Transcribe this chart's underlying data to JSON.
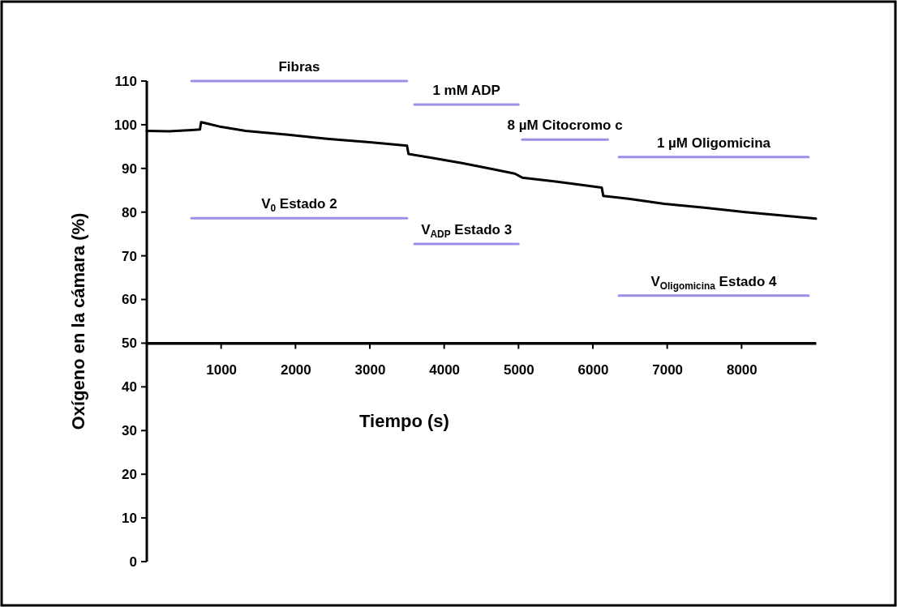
{
  "chart_data": {
    "type": "line",
    "xlabel": "Tiempo (s)",
    "ylabel": "Oxígeno en la cámara (%)",
    "xlim": [
      0,
      9000
    ],
    "xticks": [
      1000,
      2000,
      3000,
      4000,
      5000,
      6000,
      7000,
      8000
    ],
    "ylim": [
      0,
      110
    ],
    "yticks": [
      0,
      10,
      20,
      30,
      40,
      50,
      60,
      70,
      80,
      90,
      100,
      110
    ],
    "grid": false,
    "legend": false,
    "ref_lines": [
      {
        "axis": "y",
        "value": 50,
        "color": "#000000"
      }
    ],
    "series": [
      {
        "color": "#000000",
        "x": [
          0,
          300,
          600,
          715,
          730,
          1000,
          1330,
          1900,
          2420,
          3000,
          3500,
          3520,
          3800,
          4240,
          4600,
          4950,
          5050,
          5500,
          6120,
          6140,
          6500,
          6960,
          7500,
          8050,
          8500,
          9000
        ],
        "values": [
          98.6,
          98.5,
          98.8,
          98.9,
          100.6,
          99.5,
          98.6,
          97.7,
          96.8,
          96.0,
          95.2,
          93.3,
          92.5,
          91.2,
          90.0,
          88.8,
          87.9,
          87.0,
          85.6,
          83.7,
          83.0,
          81.9,
          81.0,
          80.0,
          79.3,
          78.5
        ]
      },
      {
        "name": "Fibras",
        "color": "#9b8fe6",
        "x": [
          600,
          3500
        ],
        "values": [
          110,
          110
        ]
      },
      {
        "name": "1 mM ADP",
        "color": "#9b8fe6",
        "x": [
          3600,
          5000
        ],
        "values": [
          104.6,
          104.6
        ]
      },
      {
        "name": "8 µM Citocromo c",
        "color": "#9b8fe6",
        "x": [
          5050,
          6200
        ],
        "values": [
          96.6,
          96.6
        ]
      },
      {
        "name": "1 µM Oligomicina",
        "color": "#9b8fe6",
        "x": [
          6350,
          8900
        ],
        "values": [
          92.6,
          92.6
        ]
      },
      {
        "name": "V$_{0}$ Estado 2",
        "color": "#9b8fe6",
        "x": [
          600,
          3500
        ],
        "values": [
          78.6,
          78.6
        ]
      },
      {
        "name": "V$_{ADP}$ Estado 3",
        "color": "#9b8fe6",
        "x": [
          3600,
          5000
        ],
        "values": [
          72.7,
          72.7
        ]
      },
      {
        "name": "V$_{Oligomicina}$ Estado 4",
        "color": "#9b8fe6",
        "x": [
          6350,
          8900
        ],
        "values": [
          60.9,
          60.9
        ]
      }
    ]
  }
}
